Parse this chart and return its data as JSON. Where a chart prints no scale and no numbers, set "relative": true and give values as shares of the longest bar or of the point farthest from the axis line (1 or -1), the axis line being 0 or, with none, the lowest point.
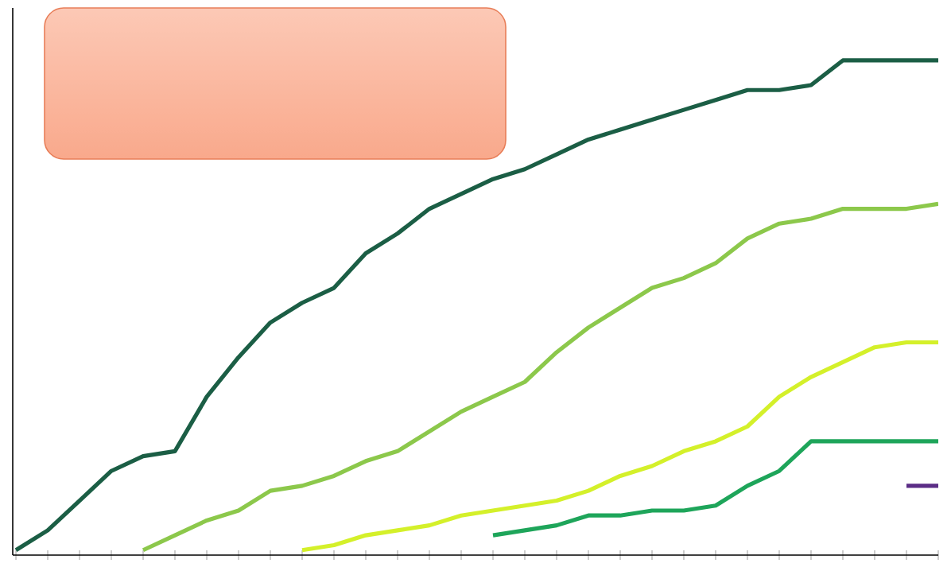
{
  "chart_data": {
    "type": "line",
    "relative": true,
    "marker": "none",
    "line_style": "solid",
    "categories": [
      null,
      null,
      null,
      null,
      null,
      null,
      null,
      null,
      null,
      null,
      null,
      null,
      null,
      null,
      null,
      null,
      null,
      null,
      null,
      null,
      null,
      null,
      null,
      null,
      null,
      null,
      null,
      null,
      null,
      null
    ],
    "series": [
      {
        "color": "#1b5e45",
        "values": [
          0.01,
          0.05,
          0.11,
          0.17,
          0.2,
          0.21,
          0.32,
          0.4,
          0.47,
          0.51,
          0.54,
          0.61,
          0.65,
          0.7,
          0.73,
          0.76,
          0.78,
          0.81,
          0.84,
          0.86,
          0.88,
          0.9,
          0.92,
          0.94,
          0.94,
          0.95,
          1,
          1,
          1,
          1
        ]
      },
      {
        "color": "#8cc84b",
        "values": [
          null,
          null,
          null,
          null,
          0.01,
          0.04,
          0.07,
          0.09,
          0.13,
          0.14,
          0.16,
          0.19,
          0.21,
          0.25,
          0.29,
          0.32,
          0.35,
          0.41,
          0.46,
          0.5,
          0.54,
          0.56,
          0.59,
          0.64,
          0.67,
          0.68,
          0.7,
          0.7,
          0.7,
          0.71
        ]
      },
      {
        "color": "#d4f02a",
        "values": [
          null,
          null,
          null,
          null,
          null,
          null,
          null,
          null,
          null,
          0.01,
          0.02,
          0.04,
          0.05,
          0.06,
          0.08,
          0.09,
          0.1,
          0.11,
          0.13,
          0.16,
          0.18,
          0.21,
          0.23,
          0.26,
          0.32,
          0.36,
          0.39,
          0.42,
          0.43,
          0.43
        ]
      },
      {
        "color": "#1ea55a",
        "values": [
          null,
          null,
          null,
          null,
          null,
          null,
          null,
          null,
          null,
          null,
          null,
          null,
          null,
          null,
          null,
          0.04,
          0.05,
          0.06,
          0.08,
          0.08,
          0.09,
          0.09,
          0.1,
          0.14,
          0.17,
          0.23,
          0.23,
          0.23,
          0.23,
          0.23
        ]
      },
      {
        "color": "#5b2d86",
        "values": [
          null,
          null,
          null,
          null,
          null,
          null,
          null,
          null,
          null,
          null,
          null,
          null,
          null,
          null,
          null,
          null,
          null,
          null,
          null,
          null,
          null,
          null,
          null,
          null,
          null,
          null,
          null,
          null,
          0.14,
          0.14
        ]
      }
    ]
  }
}
